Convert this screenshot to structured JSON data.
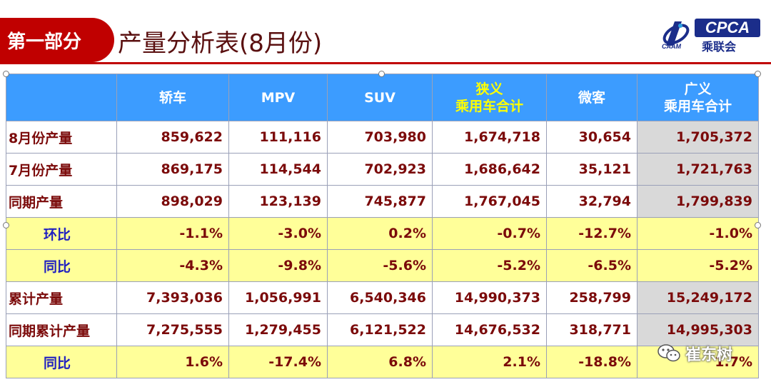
{
  "header": {
    "section_label": "第一部分",
    "title": "产量分析表(8月份)",
    "logo_text": "CPCA",
    "logo_cn": "乘联会",
    "logo_sub": "CAAM"
  },
  "table": {
    "columns": [
      "",
      "轿车",
      "MPV",
      "SUV",
      "狭义\n乘用车合计",
      "微客",
      "广义\n乘用车合计"
    ],
    "rows": [
      {
        "label": "8月份产量",
        "kind": "value",
        "cells": [
          "859,622",
          "111,116",
          "703,980",
          "1,674,718",
          "30,654",
          "1,705,372"
        ]
      },
      {
        "label": "7月份产量",
        "kind": "value",
        "cells": [
          "869,175",
          "114,544",
          "702,923",
          "1,686,642",
          "35,121",
          "1,721,763"
        ]
      },
      {
        "label": "同期产量",
        "kind": "value",
        "cells": [
          "898,029",
          "123,139",
          "745,877",
          "1,767,045",
          "32,794",
          "1,799,839"
        ]
      },
      {
        "label": "环比",
        "kind": "ratio",
        "cells": [
          "-1.1%",
          "-3.0%",
          "0.2%",
          "-0.7%",
          "-12.7%",
          "-1.0%"
        ]
      },
      {
        "label": "同比",
        "kind": "ratio",
        "cells": [
          "-4.3%",
          "-9.8%",
          "-5.6%",
          "-5.2%",
          "-6.5%",
          "-5.2%"
        ]
      },
      {
        "label": "累计产量",
        "kind": "value",
        "cells": [
          "7,393,036",
          "1,056,991",
          "6,540,346",
          "14,990,373",
          "258,799",
          "15,249,172"
        ]
      },
      {
        "label": "同期累计产量",
        "kind": "value",
        "cells": [
          "7,275,555",
          "1,279,455",
          "6,121,522",
          "14,676,532",
          "318,771",
          "14,995,303"
        ]
      },
      {
        "label": "同比",
        "kind": "ratio",
        "cells": [
          "1.6%",
          "-17.4%",
          "6.8%",
          "2.1%",
          "-18.8%",
          "1.7%"
        ]
      }
    ]
  },
  "watermark": {
    "text": "崔东树",
    "icon": "wechat-icon"
  },
  "colors": {
    "accent_red": "#c00000",
    "header_blue": "#3c9cff",
    "ratio_yellow": "#ffff99",
    "highlight_grey": "#d9d9d9",
    "value_text": "#7b0a0a",
    "ratio_label": "#2020c0"
  }
}
